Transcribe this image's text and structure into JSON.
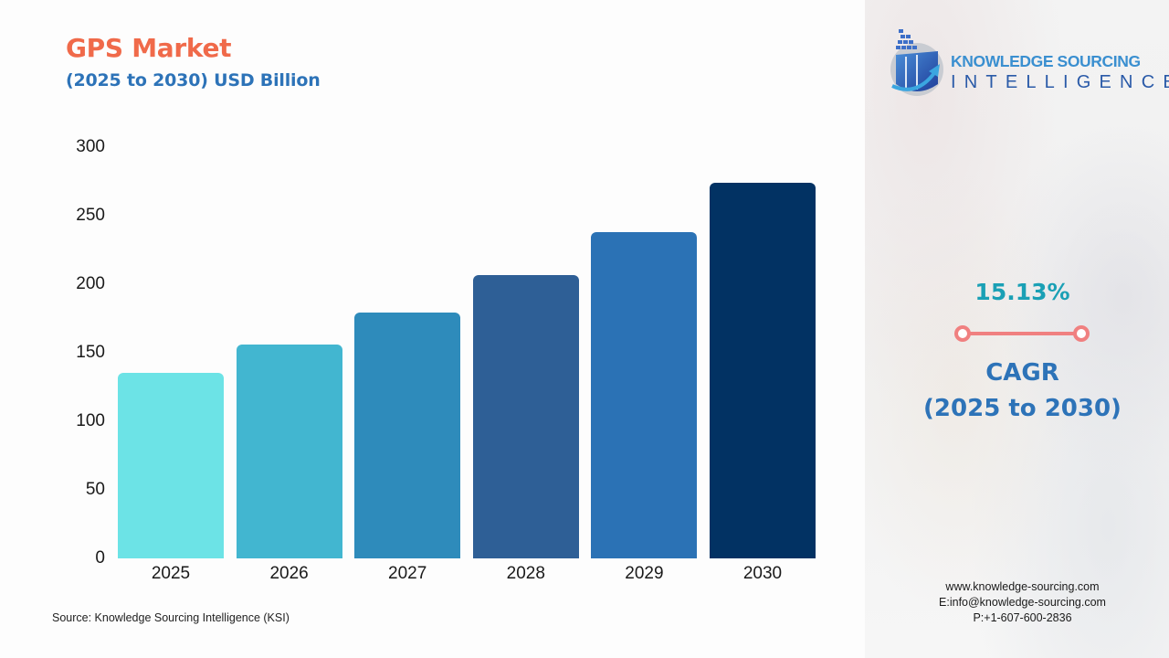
{
  "header": {
    "title": "GPS Market",
    "subtitle": "(2025 to 2030) USD Billion"
  },
  "colors": {
    "title": "#f06a4a",
    "subtitle": "#2d73b8",
    "cagr_value": "#1aa0b5",
    "cagr_label": "#2d73b8",
    "cagr_line": "#f08080",
    "bars": [
      "#6ce3e6",
      "#42b6d0",
      "#2e8bbb",
      "#2e5f96",
      "#2b72b5",
      "#023263"
    ]
  },
  "chart_data": {
    "type": "bar",
    "title": "GPS Market",
    "subtitle": "(2025 to 2030) USD Billion",
    "xlabel": "",
    "ylabel": "USD Billion",
    "categories": [
      "2025",
      "2026",
      "2027",
      "2028",
      "2029",
      "2030"
    ],
    "values": [
      135.5,
      156.0,
      179.6,
      206.8,
      238.1,
      274.1
    ],
    "yticks": [
      "0",
      "50",
      "100",
      "150",
      "200",
      "250",
      "300"
    ],
    "ylim": [
      0,
      300
    ],
    "grid": false,
    "legend": null
  },
  "source": "Source: Knowledge Sourcing Intelligence (KSI)",
  "brand": {
    "line1": "KNOWLEDGE SOURCING",
    "line2": "INTELLIGENCE",
    "icon": "ksi-logo-icon"
  },
  "cagr": {
    "value": "15.13%",
    "label": "CAGR",
    "period": "(2025 to 2030)"
  },
  "contact": {
    "website": "www.knowledge-sourcing.com",
    "email": "E:info@knowledge-sourcing.com",
    "phone": "P:+1-607-600-2836"
  }
}
